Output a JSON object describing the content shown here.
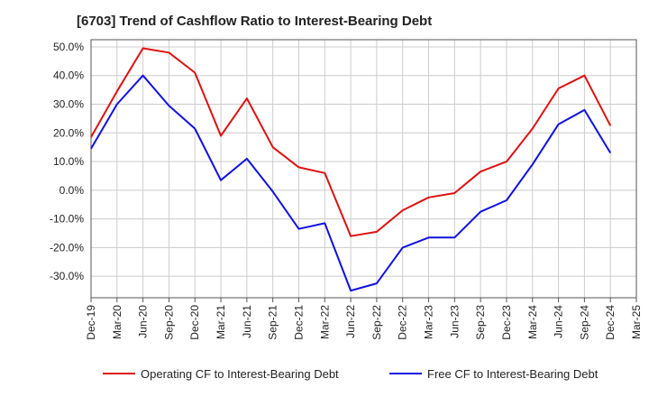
{
  "chart_data": {
    "type": "line",
    "title": "[6703]  Trend of Cashflow Ratio to Interest-Bearing Debt",
    "xlabel": "",
    "ylabel": "",
    "x": [
      "Dec-19",
      "Mar-20",
      "Jun-20",
      "Sep-20",
      "Dec-20",
      "Mar-21",
      "Jun-21",
      "Sep-21",
      "Dec-21",
      "Mar-22",
      "Jun-22",
      "Sep-22",
      "Dec-22",
      "Mar-23",
      "Jun-23",
      "Sep-23",
      "Dec-23",
      "Mar-24",
      "Jun-24",
      "Sep-24",
      "Dec-24"
    ],
    "x_ticks": [
      "Dec-19",
      "Mar-20",
      "Jun-20",
      "Sep-20",
      "Dec-20",
      "Mar-21",
      "Jun-21",
      "Sep-21",
      "Dec-21",
      "Mar-22",
      "Jun-22",
      "Sep-22",
      "Dec-22",
      "Mar-23",
      "Jun-23",
      "Sep-23",
      "Dec-23",
      "Mar-24",
      "Jun-24",
      "Sep-24",
      "Dec-24",
      "Mar-25"
    ],
    "y_ticks": [
      "50.0%",
      "40.0%",
      "30.0%",
      "20.0%",
      "10.0%",
      "0.0%",
      "-10.0%",
      "-20.0%",
      "-30.0%"
    ],
    "ylim": [
      -37.5,
      52.5
    ],
    "grid": true,
    "legend_position": "bottom",
    "series": [
      {
        "name": "Operating CF to Interest-Bearing Debt",
        "color": "#dd1111",
        "values": [
          18.5,
          34.5,
          49.5,
          48.0,
          41.0,
          19.0,
          32.0,
          15.0,
          8.0,
          6.0,
          -16.0,
          -14.5,
          -7.0,
          -2.5,
          -1.0,
          6.5,
          10.0,
          21.5,
          35.5,
          40.0,
          22.5
        ]
      },
      {
        "name": "Free CF to Interest-Bearing Debt",
        "color": "#1111dd",
        "values": [
          14.5,
          30.0,
          40.0,
          29.5,
          21.5,
          3.5,
          11.0,
          -0.5,
          -13.5,
          -11.5,
          -35.0,
          -32.5,
          -20.0,
          -16.5,
          -16.5,
          -7.5,
          -3.5,
          9.0,
          23.0,
          28.0,
          13.0
        ]
      }
    ]
  }
}
